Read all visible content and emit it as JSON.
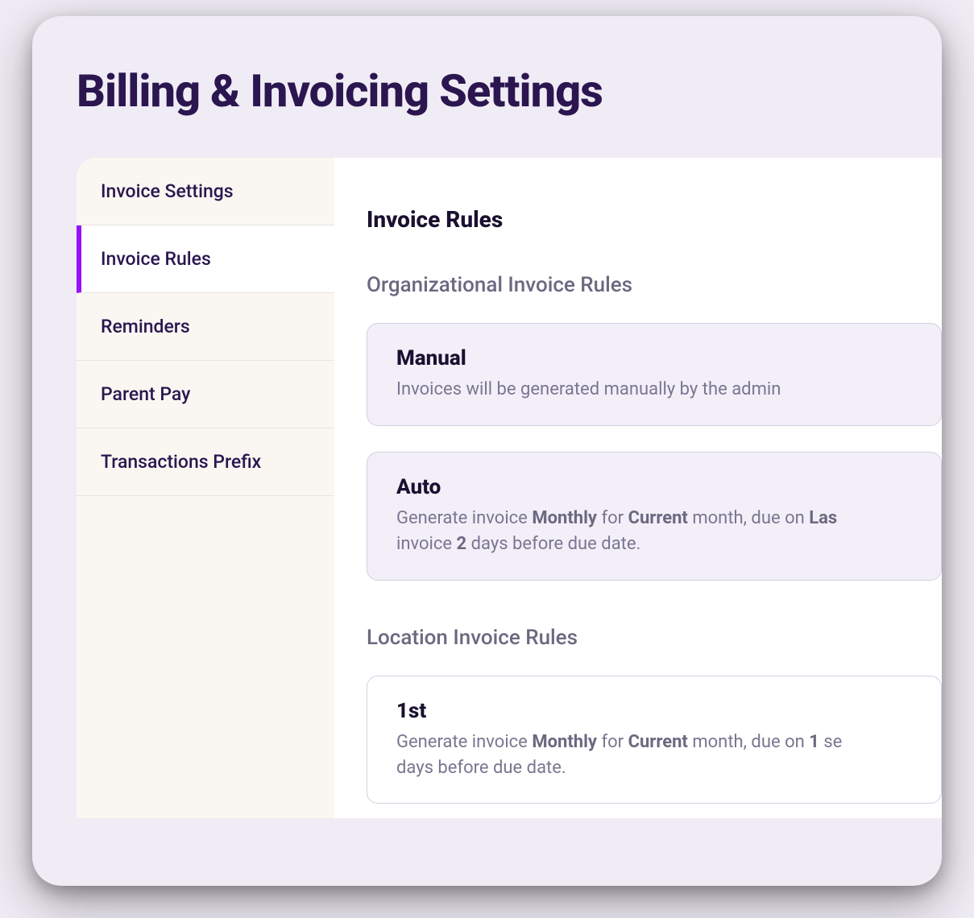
{
  "page": {
    "title": "Billing & Invoicing Settings"
  },
  "sidebar": {
    "items": [
      {
        "label": "Invoice Settings",
        "active": false
      },
      {
        "label": "Invoice Rules",
        "active": true
      },
      {
        "label": "Reminders",
        "active": false
      },
      {
        "label": "Parent Pay",
        "active": false
      },
      {
        "label": "Transactions Prefix",
        "active": false
      }
    ]
  },
  "content": {
    "section_title": "Invoice Rules",
    "org_section": {
      "title": "Organizational Invoice Rules",
      "rules": [
        {
          "title": "Manual",
          "description_plain": "Invoices will be generated manually by the admin"
        },
        {
          "title": "Auto",
          "description_parts": {
            "prefix1": "Generate invoice ",
            "bold1": "Monthly",
            "mid1": " for ",
            "bold2": "Current",
            "mid2": " month, due on ",
            "bold3": "Las",
            "line2_prefix": "invoice ",
            "bold4": "2",
            "line2_suffix": " days before due date."
          }
        }
      ]
    },
    "location_section": {
      "title": "Location Invoice Rules",
      "rules": [
        {
          "title": "1st",
          "description_parts": {
            "prefix1": "Generate invoice ",
            "bold1": "Monthly",
            "mid1": " for ",
            "bold2": "Current",
            "mid2": " month, due on ",
            "bold3": "1",
            "mid3": " se",
            "line2_suffix": "days before due date."
          }
        }
      ]
    }
  },
  "colors": {
    "page_background": "#f0ecf5",
    "panel_background": "#ffffff",
    "sidebar_background": "#faf7f2",
    "sidebar_border": "#e8e4de",
    "active_indicator": "#9810fa",
    "title_color": "#2b1650",
    "heading_color": "#1a1030",
    "muted_text": "#6c6880",
    "description_text": "#7a7690",
    "card_background": "#f3eff9",
    "card_border": "#d4cfe0"
  }
}
